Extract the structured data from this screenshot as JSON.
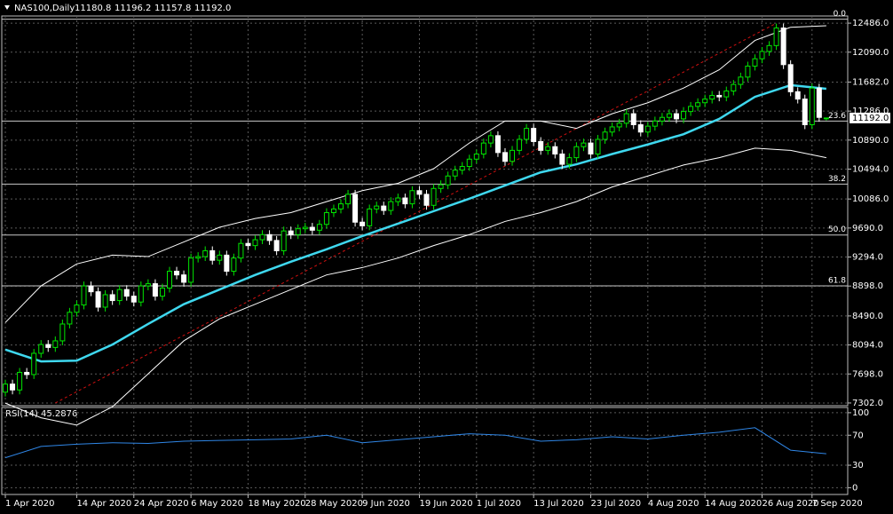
{
  "chart_data": [
    {
      "type": "candlestick",
      "title": "NAS100,Daily",
      "ohlc_labels": [
        "11180.8",
        "11196.2",
        "11157.8",
        "11192.0"
      ],
      "up_color": "#00e600",
      "down_color": "#ffffff",
      "grid": true,
      "grid_color": "#5a5a5a",
      "xlim": [
        -0.5,
        118
      ],
      "ylim": [
        7265,
        12584
      ],
      "xticks": [
        {
          "value": 0,
          "label": "1 Apr 2020"
        },
        {
          "value": 10,
          "label": "14 Apr 2020"
        },
        {
          "value": 18,
          "label": "24 Apr 2020"
        },
        {
          "value": 26,
          "label": "6 May 2020"
        },
        {
          "value": 34,
          "label": "18 May 2020"
        },
        {
          "value": 42,
          "label": "28 May 2020"
        },
        {
          "value": 50,
          "label": "9 Jun 2020"
        },
        {
          "value": 58,
          "label": "19 Jun 2020"
        },
        {
          "value": 66,
          "label": "1 Jul 2020"
        },
        {
          "value": 74,
          "label": "13 Jul 2020"
        },
        {
          "value": 82,
          "label": "23 Jul 2020"
        },
        {
          "value": 90,
          "label": "4 Aug 2020"
        },
        {
          "value": 98,
          "label": "14 Aug 2020"
        },
        {
          "value": 106,
          "label": "26 Aug 2020"
        },
        {
          "value": 113,
          "label": "7 Sep 2020"
        }
      ],
      "yticks": [
        {
          "value": 12486,
          "label": "12486.0"
        },
        {
          "value": 12090,
          "label": "12090.0"
        },
        {
          "value": 11682,
          "label": "11682.0"
        },
        {
          "value": 11286,
          "label": "11286.0"
        },
        {
          "value": 10890,
          "label": "10890.0"
        },
        {
          "value": 10494,
          "label": "10494.0"
        },
        {
          "value": 10086,
          "label": "10086.0"
        },
        {
          "value": 9690,
          "label": "9690.0"
        },
        {
          "value": 9294,
          "label": "9294.0"
        },
        {
          "value": 8898,
          "label": "8898.0"
        },
        {
          "value": 8490,
          "label": "8490.0"
        },
        {
          "value": 8094,
          "label": "8094.0"
        },
        {
          "value": 7698,
          "label": "7698.0"
        },
        {
          "value": 7302,
          "label": "7302.0"
        }
      ],
      "open": [
        7450,
        7560,
        7480,
        7720,
        7690,
        7980,
        8100,
        8060,
        8150,
        8380,
        8540,
        8640,
        8900,
        8820,
        8610,
        8780,
        8700,
        8850,
        8760,
        8680,
        8900,
        8930,
        8760,
        8870,
        9100,
        9050,
        8950,
        9280,
        9300,
        9380,
        9250,
        9320,
        9100,
        9280,
        9480,
        9450,
        9530,
        9600,
        9520,
        9380,
        9650,
        9600,
        9680,
        9700,
        9660,
        9740,
        9900,
        9950,
        10020,
        10150,
        9770,
        9720,
        9950,
        9990,
        9930,
        10050,
        10100,
        10020,
        10200,
        10150,
        10000,
        10230,
        10280,
        10400,
        10480,
        10530,
        10630,
        10700,
        10850,
        10950,
        10720,
        10600,
        10750,
        10900,
        11050,
        10870,
        10750,
        10800,
        10700,
        10560,
        10650,
        10800,
        10850,
        10700,
        10900,
        11000,
        11070,
        11120,
        11250,
        11100,
        11000,
        11080,
        11150,
        11200,
        11250,
        11180,
        11280,
        11350,
        11400,
        11450,
        11500,
        11480,
        11560,
        11650,
        11750,
        11900,
        12000,
        12100,
        12180,
        12420,
        11920,
        11550,
        11450,
        11100,
        11600,
        11180.8
      ],
      "high": [
        7620,
        7620,
        7780,
        7780,
        8040,
        8160,
        8160,
        8210,
        8440,
        8600,
        8700,
        8960,
        8960,
        8880,
        8840,
        8840,
        8910,
        8910,
        8820,
        8960,
        8990,
        8990,
        8930,
        9160,
        9160,
        9110,
        9340,
        9360,
        9440,
        9440,
        9380,
        9380,
        9340,
        9540,
        9540,
        9590,
        9660,
        9660,
        9580,
        9710,
        9710,
        9740,
        9760,
        9760,
        9800,
        9960,
        10010,
        10080,
        10210,
        10210,
        9830,
        10010,
        10050,
        10050,
        10110,
        10160,
        10160,
        10260,
        10260,
        10210,
        10290,
        10340,
        10460,
        10540,
        10590,
        10690,
        10760,
        10910,
        11010,
        11010,
        10780,
        10810,
        10960,
        11110,
        11110,
        10930,
        10860,
        10860,
        10760,
        10710,
        10860,
        10910,
        10910,
        10960,
        11060,
        11130,
        11180,
        11310,
        11310,
        11160,
        11140,
        11210,
        11260,
        11310,
        11310,
        11340,
        11410,
        11460,
        11510,
        11560,
        11560,
        11620,
        11710,
        11810,
        11960,
        12060,
        12160,
        12240,
        12480,
        12480,
        11980,
        11610,
        11510,
        11660,
        11660,
        11196.2
      ],
      "low": [
        7390,
        7420,
        7420,
        7630,
        7630,
        7920,
        8000,
        8000,
        8090,
        8320,
        8480,
        8580,
        8760,
        8550,
        8550,
        8640,
        8640,
        8700,
        8620,
        8620,
        8840,
        8700,
        8700,
        8810,
        8990,
        8890,
        8890,
        9220,
        9240,
        9190,
        9190,
        9040,
        9040,
        9220,
        9390,
        9390,
        9470,
        9460,
        9320,
        9320,
        9540,
        9540,
        9620,
        9600,
        9600,
        9680,
        9840,
        9890,
        9960,
        9710,
        9660,
        9660,
        9890,
        9870,
        9870,
        9990,
        9960,
        9960,
        10090,
        9940,
        9940,
        10170,
        10220,
        10340,
        10420,
        10470,
        10570,
        10640,
        10790,
        10660,
        10540,
        10540,
        10690,
        10840,
        10810,
        10690,
        10690,
        10640,
        10500,
        10500,
        10590,
        10740,
        10640,
        10640,
        10840,
        10940,
        11010,
        11060,
        11040,
        10940,
        10940,
        11020,
        11090,
        11140,
        11120,
        11120,
        11220,
        11290,
        11340,
        11390,
        11420,
        11420,
        11500,
        11590,
        11690,
        11840,
        11940,
        12040,
        12120,
        11860,
        11490,
        11390,
        11040,
        11040,
        11140,
        11157.8
      ],
      "close": [
        7560,
        7480,
        7720,
        7690,
        7980,
        8100,
        8060,
        8150,
        8380,
        8540,
        8640,
        8900,
        8820,
        8610,
        8780,
        8700,
        8850,
        8760,
        8680,
        8900,
        8930,
        8760,
        8870,
        9100,
        9050,
        8950,
        9280,
        9300,
        9380,
        9250,
        9320,
        9100,
        9280,
        9480,
        9450,
        9530,
        9600,
        9520,
        9380,
        9650,
        9600,
        9680,
        9700,
        9660,
        9740,
        9900,
        9950,
        10020,
        10150,
        9770,
        9720,
        9950,
        9990,
        9930,
        10050,
        10100,
        10020,
        10200,
        10150,
        10000,
        10230,
        10280,
        10400,
        10480,
        10530,
        10630,
        10700,
        10850,
        10950,
        10720,
        10600,
        10750,
        10900,
        11050,
        10870,
        10750,
        10800,
        10700,
        10560,
        10650,
        10800,
        10850,
        10700,
        10900,
        11000,
        11070,
        11120,
        11250,
        11100,
        11000,
        11080,
        11150,
        11200,
        11250,
        11180,
        11280,
        11350,
        11400,
        11450,
        11500,
        11480,
        11560,
        11650,
        11750,
        11900,
        12000,
        12100,
        12180,
        12420,
        11920,
        11550,
        11450,
        11100,
        11600,
        11200,
        11192.0
      ],
      "indicator_x": [
        0,
        5,
        10,
        15,
        20,
        25,
        30,
        35,
        40,
        45,
        50,
        55,
        60,
        65,
        70,
        75,
        80,
        85,
        90,
        95,
        100,
        105,
        110,
        115
      ],
      "series": [
        {
          "color": "#ffffff",
          "width": 1,
          "values": [
            8400,
            8900,
            9200,
            9320,
            9300,
            9500,
            9700,
            9820,
            9900,
            10050,
            10200,
            10300,
            10500,
            10850,
            11150,
            11150,
            11050,
            11250,
            11400,
            11600,
            11850,
            12250,
            12430,
            12450
          ]
        },
        {
          "color": "#ffffff",
          "width": 1,
          "values": [
            7300,
            7100,
            7000,
            7250,
            7700,
            8150,
            8450,
            8650,
            8850,
            9050,
            9150,
            9280,
            9450,
            9600,
            9780,
            9900,
            10050,
            10250,
            10400,
            10550,
            10650,
            10780,
            10750,
            10650
          ]
        },
        {
          "color": "#3fd8ef",
          "width": 2.5,
          "values": [
            8030,
            7870,
            7880,
            8100,
            8380,
            8650,
            8850,
            9050,
            9230,
            9400,
            9580,
            9750,
            9920,
            10090,
            10270,
            10450,
            10560,
            10700,
            10830,
            10970,
            11180,
            11480,
            11640,
            11590
          ]
        }
      ],
      "fib_color": "#c8c8c8",
      "fib_levels": [
        {
          "value": 12540,
          "label": "0.0"
        },
        {
          "value": 11150,
          "label": "23.6"
        },
        {
          "value": 10290,
          "label": "38.2"
        },
        {
          "value": 9595,
          "label": "50.0"
        },
        {
          "value": 8900,
          "label": "61.8"
        }
      ],
      "trendline": {
        "color": "#d01010",
        "x": [
          7,
          108
        ],
        "values": [
          7302,
          12486
        ]
      }
    },
    {
      "type": "line",
      "title": "RSI(14) 45.2876",
      "color": "#2f86e6",
      "grid": true,
      "xlim": [
        -0.5,
        118
      ],
      "ylim": [
        -9,
        107
      ],
      "yticks": [
        100,
        70,
        30,
        0
      ],
      "x": [
        0,
        5,
        10,
        15,
        20,
        25,
        30,
        35,
        40,
        45,
        50,
        55,
        60,
        65,
        70,
        75,
        80,
        85,
        90,
        95,
        100,
        105,
        110,
        115
      ],
      "values": [
        40,
        55,
        58,
        60,
        59,
        62,
        63,
        64,
        65,
        70,
        60,
        64,
        68,
        72,
        70,
        62,
        64,
        68,
        65,
        70,
        74,
        80,
        50,
        45.2876
      ]
    }
  ]
}
